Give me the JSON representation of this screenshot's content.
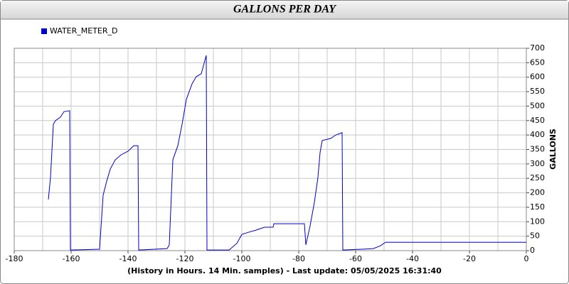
{
  "chart_data": {
    "type": "line",
    "title": "GALLONS PER DAY",
    "x_label": "(History in Hours. 14 Min. samples) - Last update: 05/05/2025 16:31:40",
    "y_label": "GALLONS",
    "x": [
      -168,
      -167.25,
      -166.25,
      -165.5,
      -163.75,
      -162.5,
      -160.5,
      -160.25,
      -150,
      -148.75,
      -147.5,
      -146.25,
      -144.5,
      -142.5,
      -140,
      -138,
      -136.5,
      -136.25,
      -126.25,
      -125.5,
      -124.25,
      -122.5,
      -121,
      -119.5,
      -117.5,
      -116,
      -114.25,
      -113,
      -112.5,
      -112.25,
      -104.5,
      -101.75,
      -100,
      -97.5,
      -95,
      -92,
      -89,
      -88.75,
      -78,
      -77.5,
      -76,
      -74.5,
      -73.25,
      -72.5,
      -71.75,
      -68.75,
      -67,
      -64.75,
      -64.5,
      -57.5,
      -53.75,
      -51.25,
      -49.5,
      0
    ],
    "series": [
      {
        "name": "WATER_METER_D",
        "color": "#0000cc",
        "values": [
          177,
          253,
          437,
          450,
          462,
          481,
          484,
          2,
          5,
          192,
          240,
          282,
          314,
          331,
          344,
          363,
          363,
          2,
          7,
          20,
          314,
          363,
          437,
          523,
          577,
          602,
          612,
          658,
          675,
          2,
          2,
          25,
          56,
          64,
          71,
          81,
          81,
          93,
          93,
          20,
          86,
          167,
          253,
          339,
          381,
          388,
          400,
          408,
          2,
          5,
          7,
          17,
          29,
          29
        ]
      }
    ],
    "xlim": [
      -180,
      0
    ],
    "xticks": [
      -180,
      -160,
      -140,
      -120,
      -100,
      -80,
      -60,
      -40,
      -20,
      0
    ],
    "xgrid_step": 10,
    "ylim": [
      0,
      700
    ],
    "yticks": [
      0,
      50,
      100,
      150,
      200,
      250,
      300,
      350,
      400,
      450,
      500,
      550,
      600,
      650,
      700
    ],
    "grid": true,
    "legend": "top-left"
  }
}
